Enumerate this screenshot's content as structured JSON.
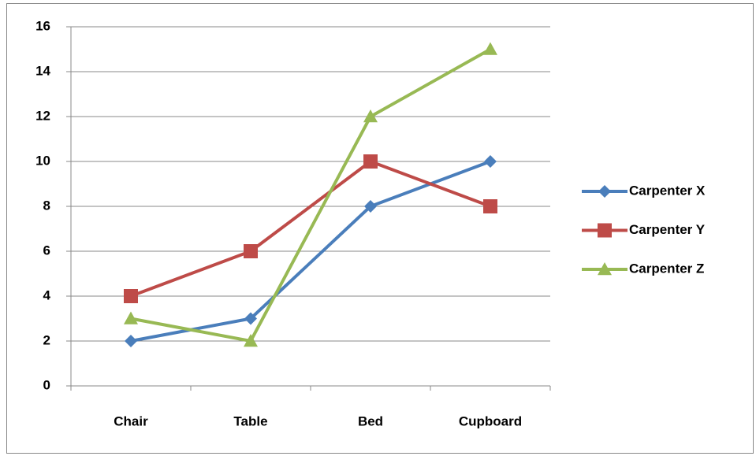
{
  "chart_data": {
    "type": "line",
    "categories": [
      "Chair",
      "Table",
      "Bed",
      "Cupboard"
    ],
    "series": [
      {
        "name": "Carpenter X",
        "color": "#4a7ebb",
        "marker": "diamond",
        "values": [
          2,
          3,
          8,
          10
        ]
      },
      {
        "name": "Carpenter Y",
        "color": "#be4b48",
        "marker": "square",
        "values": [
          4,
          6,
          10,
          8
        ]
      },
      {
        "name": "Carpenter Z",
        "color": "#98b954",
        "marker": "triangle",
        "values": [
          3,
          2,
          12,
          15
        ]
      }
    ],
    "ylim": [
      0,
      16
    ],
    "yticks": [
      0,
      2,
      4,
      6,
      8,
      10,
      12,
      14,
      16
    ],
    "grid": true,
    "legend": "right"
  }
}
